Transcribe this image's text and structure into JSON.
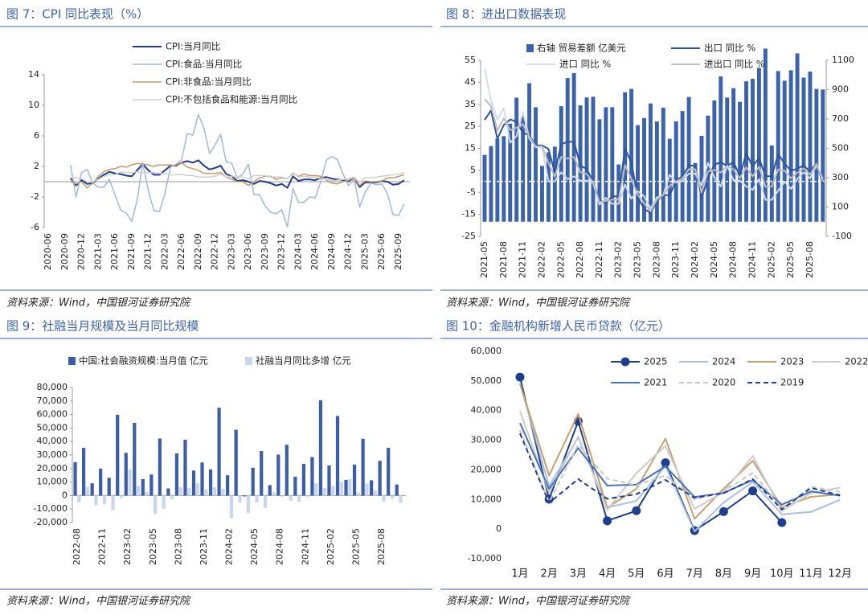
{
  "chart_data": [
    {
      "type": "line",
      "title": "图 7：CPI 同比表现（%）",
      "source": "资料来源：Wind，中国银河证券研究院",
      "categories": [
        "2020-06",
        null,
        null,
        "2020-09",
        null,
        null,
        "2020-12",
        null,
        null,
        "2021-03",
        null,
        null,
        "2021-06",
        null,
        null,
        "2021-09",
        null,
        null,
        "2021-12",
        null,
        null,
        "2022-03",
        null,
        null,
        "2022-06",
        null,
        null,
        "2022-09",
        null,
        null,
        "2022-12",
        null,
        null,
        "2023-03",
        null,
        null,
        "2023-06",
        null,
        null,
        "2023-09",
        null,
        null,
        "2023-12",
        null,
        null,
        "2024-03",
        null,
        null,
        "2024-06",
        null,
        null,
        "2024-09",
        null,
        null,
        "2024-12",
        null,
        null,
        "2025-03",
        null,
        null,
        "2025-06",
        null,
        null,
        "2025-09",
        null
      ],
      "ylim": [
        -6,
        14
      ],
      "yticks": [
        -6,
        -2,
        2,
        6,
        10,
        14
      ],
      "grid": false,
      "series": [
        {
          "name": "CPI:当月同比",
          "color": "#1f3d8c",
          "width": 2,
          "values": [
            null,
            null,
            null,
            null,
            0.5,
            -0.5,
            0.2,
            -0.3,
            -0.2,
            0.4,
            0.9,
            1.3,
            1.1,
            1.0,
            0.8,
            0.7,
            1.5,
            2.3,
            1.5,
            0.9,
            0.9,
            1.5,
            2.1,
            2.1,
            2.5,
            2.7,
            2.5,
            2.8,
            2.1,
            1.6,
            1.8,
            2.1,
            1.0,
            0.7,
            0.1,
            0.2,
            0.0,
            -0.3,
            0.1,
            0.0,
            -0.2,
            -0.5,
            -0.3,
            -0.8,
            0.7,
            0.1,
            0.3,
            0.3,
            0.2,
            0.5,
            0.6,
            0.4,
            0.3,
            0.2,
            0.1,
            0.5,
            -0.7,
            -0.1,
            -0.1,
            -0.1,
            0.1,
            0.0,
            -0.4,
            -0.3,
            0.2
          ]
        },
        {
          "name": "CPI:食品:当月同比",
          "color": "#9fb8df",
          "width": 1.5,
          "values": [
            null,
            null,
            null,
            null,
            2.2,
            -2.0,
            1.2,
            1.6,
            -0.2,
            -0.7,
            -0.7,
            0.3,
            -1.7,
            -3.7,
            -4.1,
            -5.2,
            -2.4,
            2.5,
            -1.2,
            -3.8,
            -3.9,
            -1.5,
            1.9,
            2.3,
            2.9,
            6.3,
            6.1,
            8.8,
            7.0,
            3.7,
            4.8,
            6.2,
            2.6,
            2.4,
            0.4,
            1.0,
            2.3,
            -1.7,
            -1.7,
            -3.2,
            -4.0,
            -4.2,
            -3.7,
            -5.9,
            -0.9,
            -2.7,
            -2.7,
            -2.0,
            -2.1,
            0.0,
            2.8,
            3.3,
            2.9,
            1.0,
            -0.5,
            0.4,
            -3.3,
            -1.4,
            -0.2,
            -0.4,
            -0.3,
            -1.6,
            -4.3,
            -4.4,
            -2.9
          ]
        },
        {
          "name": "CPI:非食品:当月同比",
          "color": "#c59a6a",
          "width": 1.5,
          "values": [
            null,
            null,
            null,
            null,
            0.0,
            -0.3,
            0.0,
            -0.8,
            -0.2,
            0.7,
            1.3,
            1.6,
            1.7,
            2.0,
            1.9,
            2.2,
            2.4,
            2.3,
            2.2,
            2.0,
            2.2,
            2.2,
            2.2,
            2.0,
            2.5,
            1.9,
            1.7,
            1.5,
            1.1,
            1.1,
            1.1,
            1.2,
            0.6,
            0.3,
            0.0,
            0.0,
            -0.5,
            0.0,
            0.5,
            0.7,
            0.7,
            0.3,
            0.5,
            0.4,
            1.1,
            0.7,
            1.0,
            0.8,
            0.8,
            0.7,
            0.2,
            -0.2,
            -0.3,
            0.0,
            0.2,
            0.5,
            -0.5,
            0.1,
            0.0,
            0.0,
            0.1,
            0.5,
            0.5,
            0.7,
            0.9
          ]
        },
        {
          "name": "CPI:不包括食品和能源:当月同比",
          "color": "#cfcfcf",
          "width": 1.5,
          "values": [
            null,
            null,
            null,
            null,
            0.5,
            0.5,
            0.4,
            0.0,
            0.0,
            0.3,
            0.7,
            0.9,
            0.9,
            1.3,
            1.2,
            1.2,
            1.3,
            1.2,
            1.2,
            1.2,
            1.1,
            1.1,
            0.9,
            0.9,
            1.0,
            0.8,
            0.8,
            0.6,
            0.6,
            0.6,
            0.7,
            1.0,
            0.6,
            0.7,
            0.7,
            0.6,
            0.4,
            0.8,
            0.8,
            0.8,
            0.6,
            0.6,
            0.6,
            0.4,
            1.2,
            0.6,
            0.7,
            0.6,
            0.6,
            0.4,
            0.3,
            0.1,
            0.2,
            0.3,
            0.4,
            0.6,
            -0.1,
            0.5,
            0.5,
            0.6,
            0.7,
            0.8,
            0.9,
            1.0,
            1.2
          ]
        }
      ]
    },
    {
      "type": "combo",
      "title": "图 8：进出口数据表现",
      "source": "资料来源：Wind，中国银河证券研究院",
      "categories": [
        "2021-05",
        null,
        null,
        "2021-08",
        null,
        null,
        "2021-11",
        null,
        null,
        "2022-02",
        null,
        null,
        "2022-05",
        null,
        null,
        "2022-08",
        null,
        null,
        "2022-11",
        null,
        null,
        "2023-02",
        null,
        null,
        "2023-05",
        null,
        null,
        "2023-08",
        null,
        null,
        "2023-11",
        null,
        null,
        "2024-02",
        null,
        null,
        "2024-05",
        null,
        null,
        "2024-08",
        null,
        null,
        "2024-11",
        null,
        null,
        "2025-02",
        null,
        null,
        "2025-05",
        null,
        null,
        "2025-08",
        null,
        null
      ],
      "ylim": [
        -25,
        55
      ],
      "yticks": [
        -25,
        -15,
        -5,
        5,
        15,
        25,
        35,
        45,
        55
      ],
      "y2lim": [
        -100,
        1100
      ],
      "y2ticks": [
        -100,
        100,
        300,
        500,
        700,
        900,
        1100
      ],
      "grid": false,
      "series": [
        {
          "name": "右轴 贸易差额 亿美元",
          "type": "bar",
          "axis": "y2",
          "color": "#3b63ad",
          "values": [
            455,
            515,
            566,
            583,
            668,
            845,
            717,
            944,
            780,
            380,
            473,
            511,
            787,
            979,
            1013,
            793,
            847,
            852,
            698,
            780,
            780,
            390,
            882,
            905,
            658,
            706,
            806,
            683,
            777,
            565,
            684,
            754,
            850,
            400,
            585,
            723,
            826,
            990,
            846,
            910,
            817,
            957,
            974,
            1048,
            1180,
            520,
            1027,
            961,
            1032,
            1147,
            982,
            1023,
            905,
            901
          ]
        },
        {
          "name": "出口 同比 %",
          "type": "line",
          "color": "#2c55a0",
          "width": 2,
          "values": [
            27.9,
            32.2,
            19.3,
            25.6,
            28.1,
            27.1,
            22.0,
            20.9,
            16.3,
            16.3,
            14.7,
            3.9,
            16.9,
            17.9,
            18.0,
            7.1,
            5.7,
            -0.3,
            -8.7,
            -9.9,
            -6.8,
            -6.8,
            14.8,
            8.5,
            -7.5,
            -12.4,
            -14.5,
            -8.8,
            -6.2,
            -6.4,
            0.5,
            2.3,
            7.1,
            7.1,
            -7.5,
            1.5,
            7.6,
            8.6,
            7.0,
            8.7,
            2.4,
            12.7,
            6.7,
            10.7,
            2.3,
            2.3,
            12.4,
            8.1,
            4.8,
            5.8,
            7.2,
            4.4,
            8.3,
            -1.1
          ]
        },
        {
          "name": "进口 同比 %",
          "type": "line",
          "color": "#d2dcee",
          "width": 2,
          "values": [
            51.1,
            36.7,
            28.1,
            33.1,
            17.6,
            20.6,
            31.7,
            19.5,
            15.5,
            15.5,
            -0.1,
            0.0,
            4.1,
            1.0,
            2.3,
            0.3,
            0.3,
            -0.7,
            -10.6,
            -7.5,
            -10.2,
            -10.2,
            -1.4,
            -7.9,
            -4.5,
            -6.8,
            -12.4,
            -7.3,
            -6.2,
            3.0,
            -0.6,
            0.2,
            3.5,
            3.5,
            -1.9,
            8.4,
            1.8,
            -2.3,
            7.2,
            0.5,
            0.3,
            -2.3,
            -3.9,
            1.0,
            -8.4,
            -8.4,
            -4.3,
            -0.2,
            -3.4,
            1.1,
            4.1,
            1.3,
            7.4,
            1.0
          ]
        },
        {
          "name": "进出口 同比 %",
          "type": "line",
          "color": "#bdbdbd",
          "width": 2,
          "values": [
            37.4,
            34.2,
            23.1,
            28.6,
            23.3,
            24.3,
            26.0,
            20.3,
            15.9,
            15.9,
            8.3,
            2.1,
            11.1,
            10.3,
            11.0,
            4.1,
            3.4,
            -0.4,
            -9.5,
            -8.9,
            -8.3,
            -8.3,
            7.4,
            1.1,
            -6.2,
            -10.0,
            -13.6,
            -8.2,
            -6.2,
            -2.0,
            0.0,
            1.4,
            5.5,
            5.5,
            -5.1,
            4.4,
            5.2,
            4.0,
            7.0,
            5.4,
            1.5,
            6.3,
            2.3,
            6.6,
            -2.4,
            -2.4,
            5.4,
            4.8,
            1.4,
            3.9,
            5.9,
            3.1,
            8.0,
            0.1
          ]
        }
      ]
    },
    {
      "type": "bar",
      "title": "图 9：社融当月规模及当月同比规模",
      "source": "资料来源：Wind，中国银河证券研究院",
      "categories": [
        "2022-08",
        null,
        null,
        "2022-11",
        null,
        null,
        "2023-02",
        null,
        null,
        "2023-05",
        null,
        null,
        "2023-08",
        null,
        null,
        "2023-11",
        null,
        null,
        "2024-02",
        null,
        null,
        "2024-05",
        null,
        null,
        "2024-08",
        null,
        null,
        "2024-11",
        null,
        null,
        "2025-02",
        null,
        null,
        "2025-05",
        null,
        null,
        "2025-08",
        null,
        null
      ],
      "ylim": [
        -20000,
        80000
      ],
      "yticks": [
        {
          "value": -20000,
          "label": "-20,000"
        },
        {
          "value": -10000,
          "label": "-10,000"
        },
        0,
        {
          "value": 10000,
          "label": "10,000"
        },
        {
          "value": 20000,
          "label": "20,000"
        },
        {
          "value": 30000,
          "label": "30,000"
        },
        {
          "value": 40000,
          "label": "40,000"
        },
        {
          "value": 50000,
          "label": "50,000"
        },
        {
          "value": 60000,
          "label": "60,000"
        },
        {
          "value": 70000,
          "label": "70,000"
        },
        {
          "value": 80000,
          "label": "80,000"
        }
      ],
      "grid": false,
      "series": [
        {
          "name": "中国:社会融资规模:当月值 亿元",
          "color": "#3c5ea8",
          "values": [
            24700,
            35300,
            9079,
            19900,
            13100,
            59800,
            31600,
            53800,
            12200,
            15600,
            42200,
            5282,
            31200,
            41300,
            18500,
            24500,
            19300,
            65000,
            15000,
            48700,
            -658,
            20600,
            33000,
            7707,
            30300,
            37600,
            13900,
            23400,
            28500,
            70600,
            22300,
            58900,
            11600,
            22900,
            42000,
            11300,
            25700,
            35300,
            8161
          ]
        },
        {
          "name": "社融当月同比多增 亿元",
          "color": "#c9d6ef",
          "values": [
            -5100,
            6245,
            -7175,
            -6100,
            -10600,
            -1959,
            19500,
            7079,
            2729,
            -13700,
            -9776,
            -2703,
            6316,
            5638,
            9108,
            4556,
            6169,
            5061,
            -16600,
            -5142,
            -12900,
            -5100,
            -9300,
            2400,
            -900,
            -3700,
            -4600,
            -1100,
            9200,
            5600,
            7300,
            10200,
            12300,
            2300,
            9000,
            3600,
            -4600,
            -2300,
            -5500
          ]
        }
      ]
    },
    {
      "type": "line",
      "title": "图 10：金融机构新增人民币贷款（亿元）",
      "source": "资料来源：Wind，中国银河证券研究院",
      "categories": [
        "1月",
        "2月",
        "3月",
        "4月",
        "5月",
        "6月",
        "7月",
        "8月",
        "9月",
        "10月",
        "11月",
        "12月"
      ],
      "ylim": [
        -10000,
        60000
      ],
      "yticks": [
        {
          "value": -10000,
          "label": "-10,000"
        },
        0,
        {
          "value": 10000,
          "label": "10,000"
        },
        {
          "value": 20000,
          "label": "20,000"
        },
        {
          "value": 30000,
          "label": "30,000"
        },
        {
          "value": 40000,
          "label": "40,000"
        },
        {
          "value": 50000,
          "label": "50,000"
        },
        {
          "value": 60000,
          "label": "60,000"
        }
      ],
      "grid": false,
      "series": [
        {
          "name": "2025",
          "color": "#1f3e8c",
          "width": 2,
          "markers": true,
          "values": [
            51300,
            10100,
            36400,
            2800,
            6200,
            22400,
            -500,
            5900,
            12900,
            2200,
            null,
            null
          ]
        },
        {
          "name": "2024",
          "color": "#a9c0e0",
          "width": 2,
          "values": [
            49200,
            14500,
            30900,
            7300,
            9500,
            21300,
            -770,
            9000,
            15900,
            5000,
            5800,
            9900
          ]
        },
        {
          "name": "2023",
          "color": "#c8a070",
          "width": 2,
          "values": [
            49000,
            18100,
            38900,
            7188,
            13600,
            30500,
            3459,
            13600,
            23100,
            7384,
            10900,
            11700
          ]
        },
        {
          "name": "2022",
          "color": "#cccccc",
          "width": 2,
          "values": [
            39800,
            12300,
            31300,
            6454,
            18900,
            28100,
            6790,
            12500,
            24700,
            6152,
            12100,
            14000
          ]
        },
        {
          "name": "2021",
          "color": "#4a72b8",
          "width": 2,
          "values": [
            35800,
            13600,
            27300,
            14700,
            15000,
            21200,
            10800,
            12200,
            16600,
            8262,
            12700,
            11300
          ]
        },
        {
          "name": "2020",
          "color": "#c8c8c8",
          "width": 2,
          "dash": true,
          "values": [
            33400,
            9057,
            28500,
            17000,
            14800,
            18100,
            9927,
            12800,
            19000,
            6898,
            14300,
            12600
          ]
        },
        {
          "name": "2019",
          "color": "#1f3e8c",
          "width": 2,
          "dash": true,
          "values": [
            32300,
            8858,
            16900,
            10200,
            11800,
            16600,
            10600,
            12100,
            16900,
            6613,
            13900,
            11400
          ]
        }
      ]
    }
  ]
}
